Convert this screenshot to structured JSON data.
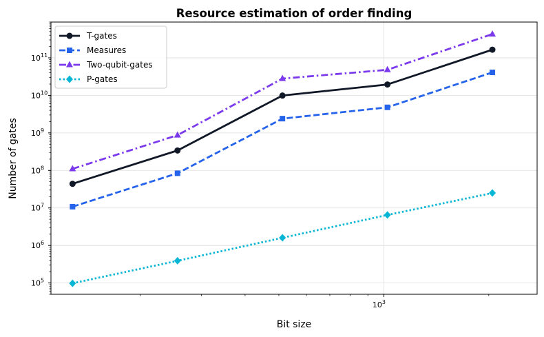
{
  "chart_data": {
    "type": "line",
    "title": "Resource estimation of order finding",
    "xlabel": "Bit size",
    "ylabel": "Number of gates",
    "xscale": "log",
    "yscale": "log",
    "xlim": [
      111,
      2752
    ],
    "ylim": [
      50000,
      900000000000
    ],
    "grid": true,
    "legend_position": "top-left",
    "x": [
      128,
      256,
      512,
      1024,
      2048
    ],
    "x_ticks": [
      {
        "value": 1000,
        "base": "10",
        "exp": "3"
      }
    ],
    "y_ticks": [
      {
        "value": 100000,
        "base": "10",
        "exp": "5"
      },
      {
        "value": 1000000,
        "base": "10",
        "exp": "6"
      },
      {
        "value": 10000000,
        "base": "10",
        "exp": "7"
      },
      {
        "value": 100000000,
        "base": "10",
        "exp": "8"
      },
      {
        "value": 1000000000,
        "base": "10",
        "exp": "9"
      },
      {
        "value": 10000000000,
        "base": "10",
        "exp": "10"
      },
      {
        "value": 100000000000,
        "base": "10",
        "exp": "11"
      }
    ],
    "series": [
      {
        "name": "T-gates",
        "color": "#111827",
        "marker": "circle",
        "dash": "solid",
        "values": [
          44000000,
          340000000,
          9900000000,
          19500000000,
          165000000000
        ]
      },
      {
        "name": "Measures",
        "color": "#2563eb",
        "marker": "square",
        "dash": "dashed",
        "values": [
          10800000,
          84000000,
          2400000000,
          4800000000,
          41000000000
        ]
      },
      {
        "name": "Two-qubit-gates",
        "color": "#7c3aed",
        "marker": "triangle",
        "dash": "dashdot",
        "values": [
          110000000,
          870000000,
          28000000000,
          48000000000,
          430000000000
        ]
      },
      {
        "name": "P-gates",
        "color": "#06b6d4",
        "marker": "diamond",
        "dash": "dotted",
        "values": [
          98000,
          390000,
          1600000,
          6500000,
          25000000
        ]
      }
    ]
  }
}
